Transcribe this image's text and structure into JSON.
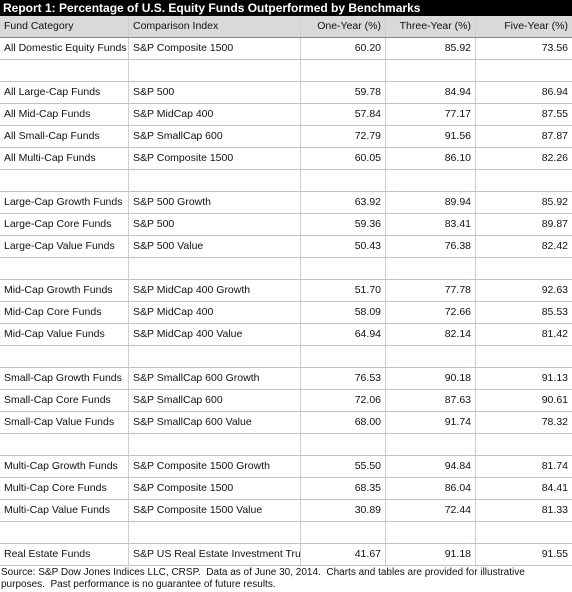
{
  "header": {
    "title": "Report 1: Percentage of U.S. Equity Funds Outperformed by Benchmarks"
  },
  "table": {
    "columns": [
      "Fund Category",
      "Comparison Index",
      "One-Year (%)",
      "Three-Year (%)",
      "Five-Year (%)"
    ],
    "groups": [
      [
        [
          "All Domestic Equity Funds",
          "S&P Composite 1500",
          "60.20",
          "85.92",
          "73.56"
        ]
      ],
      [
        [
          "All Large-Cap Funds",
          "S&P 500",
          "59.78",
          "84.94",
          "86.94"
        ],
        [
          "All Mid-Cap Funds",
          "S&P MidCap 400",
          "57.84",
          "77.17",
          "87.55"
        ],
        [
          "All Small-Cap Funds",
          "S&P SmallCap 600",
          "72.79",
          "91.56",
          "87.87"
        ],
        [
          "All Multi-Cap Funds",
          "S&P Composite 1500",
          "60.05",
          "86.10",
          "82.26"
        ]
      ],
      [
        [
          "Large-Cap Growth Funds",
          "S&P 500 Growth",
          "63.92",
          "89.94",
          "85.92"
        ],
        [
          "Large-Cap Core Funds",
          "S&P 500",
          "59.36",
          "83.41",
          "89.87"
        ],
        [
          "Large-Cap Value Funds",
          "S&P 500 Value",
          "50.43",
          "76.38",
          "82.42"
        ]
      ],
      [
        [
          "Mid-Cap Growth Funds",
          "S&P MidCap 400 Growth",
          "51.70",
          "77.78",
          "92.63"
        ],
        [
          "Mid-Cap Core Funds",
          "S&P MidCap 400",
          "58.09",
          "72.66",
          "85.53"
        ],
        [
          "Mid-Cap Value Funds",
          "S&P MidCap 400 Value",
          "64.94",
          "82.14",
          "81.42"
        ]
      ],
      [
        [
          "Small-Cap Growth Funds",
          "S&P SmallCap 600 Growth",
          "76.53",
          "90.18",
          "91.13"
        ],
        [
          "Small-Cap Core Funds",
          "S&P SmallCap 600",
          "72.06",
          "87.63",
          "90.61"
        ],
        [
          "Small-Cap Value Funds",
          "S&P SmallCap 600 Value",
          "68.00",
          "91.74",
          "78.32"
        ]
      ],
      [
        [
          "Multi-Cap Growth Funds",
          "S&P Composite 1500 Growth",
          "55.50",
          "94.84",
          "81.74"
        ],
        [
          "Multi-Cap Core Funds",
          "S&P Composite 1500",
          "68.35",
          "86.04",
          "84.41"
        ],
        [
          "Multi-Cap Value Funds",
          "S&P Composite 1500 Value",
          "30.89",
          "72.44",
          "81.33"
        ]
      ],
      [
        [
          "Real Estate Funds",
          "S&P US Real Estate Investment Trust",
          "41.67",
          "91.18",
          "91.55"
        ]
      ]
    ]
  },
  "footer": {
    "source": "Source: S&P Dow Jones Indices LLC, CRSP.  Data as of June 30, 2014.  Charts and tables are provided for illustrative purposes.  Past performance is no guarantee of future results."
  }
}
